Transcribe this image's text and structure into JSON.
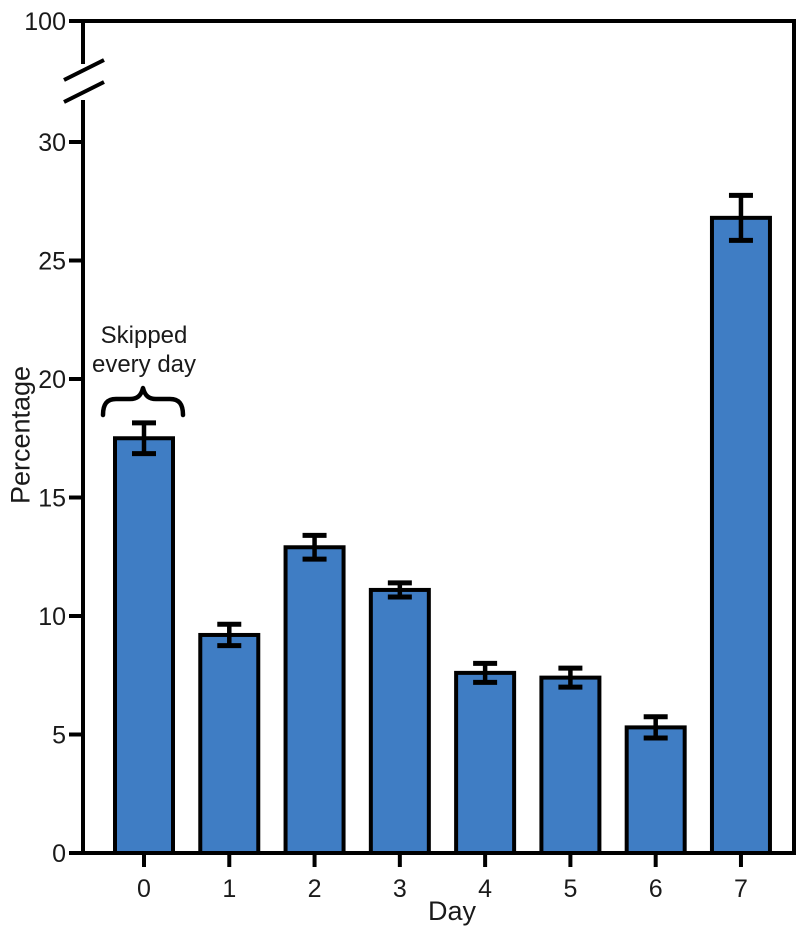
{
  "chart_data": {
    "type": "bar",
    "title": "",
    "xlabel": "Day",
    "ylabel": "Percentage",
    "categories": [
      "0",
      "1",
      "2",
      "3",
      "4",
      "5",
      "6",
      "7"
    ],
    "values": [
      17.5,
      9.2,
      12.9,
      11.1,
      7.6,
      7.4,
      5.3,
      26.8
    ],
    "errors": [
      0.65,
      0.45,
      0.5,
      0.3,
      0.4,
      0.4,
      0.45,
      0.95
    ],
    "y_ticks": [
      0,
      5,
      10,
      15,
      20,
      25,
      30
    ],
    "y_break_top_tick": 100,
    "axis_break": {
      "enabled": true,
      "between": [
        33,
        100
      ]
    },
    "ylim_lower_segment": [
      0,
      33
    ],
    "grid": false,
    "legend": "none",
    "annotation": {
      "lines": [
        "Skipped",
        "every day"
      ],
      "target_category": "0",
      "marker": "curly-brace"
    },
    "bar_color": "#3F7DC4",
    "outline_color": "#000000",
    "text_color": "#1a1a1a"
  }
}
